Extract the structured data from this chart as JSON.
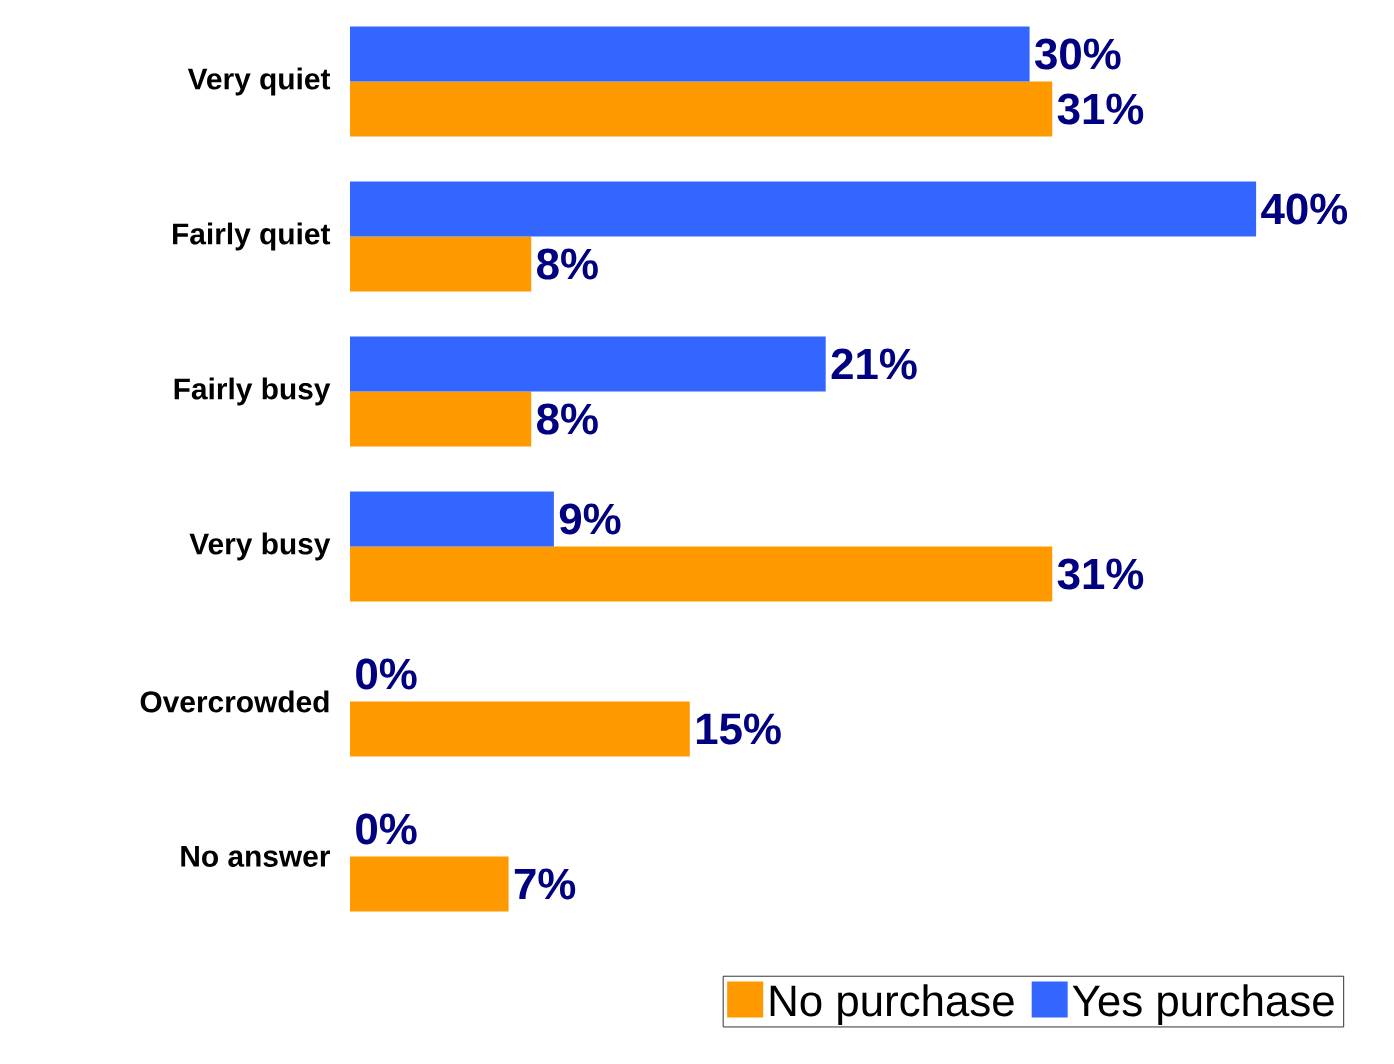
{
  "chart_data": {
    "type": "bar",
    "orientation": "horizontal",
    "categories": [
      "Very quiet",
      "Fairly quiet",
      "Fairly busy",
      "Very busy",
      "Overcrowded",
      "No answer"
    ],
    "series": [
      {
        "name": "No purchase",
        "color": "#ff9900",
        "values": [
          31,
          8,
          8,
          31,
          15,
          7
        ],
        "value_labels": [
          "31%",
          "8%",
          "8%",
          "31%",
          "15%",
          "7%"
        ]
      },
      {
        "name": "Yes purchase",
        "color": "#3366ff",
        "values": [
          30,
          40,
          21,
          9,
          0,
          0
        ],
        "value_labels": [
          "30%",
          "40%",
          "21%",
          "9%",
          "0%",
          "0%"
        ]
      }
    ],
    "legend": "bottom right",
    "tick_labels": "y"
  }
}
